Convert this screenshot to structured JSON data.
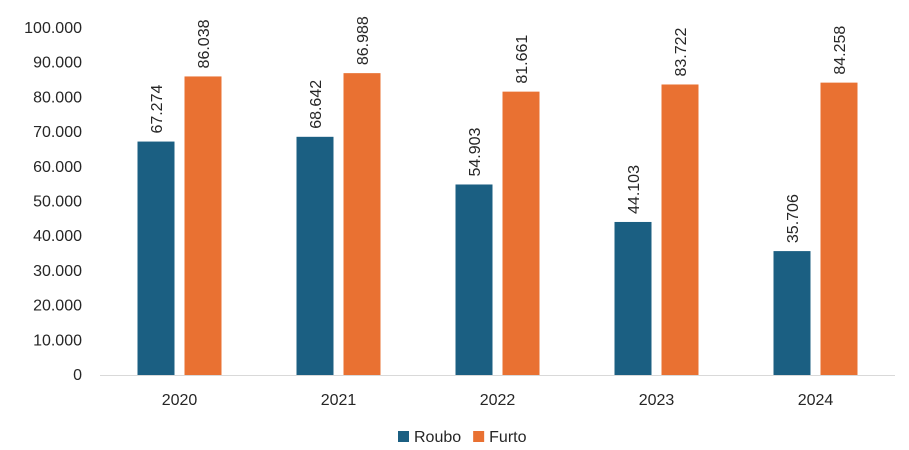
{
  "chart_data": {
    "type": "bar",
    "categories": [
      "2020",
      "2021",
      "2022",
      "2023",
      "2024"
    ],
    "series": [
      {
        "name": "Roubo",
        "color": "#1b5f82",
        "values": [
          67274,
          68642,
          54903,
          44103,
          35706
        ],
        "labels": [
          "67.274",
          "68.642",
          "54.903",
          "44.103",
          "35.706"
        ]
      },
      {
        "name": "Furto",
        "color": "#e97132",
        "values": [
          86038,
          86988,
          81661,
          83722,
          84258
        ],
        "labels": [
          "86.038",
          "86.988",
          "81.661",
          "83.722",
          "84.258"
        ]
      }
    ],
    "ylim": [
      0,
      100000
    ],
    "y_ticks": [
      {
        "value": 0,
        "label": "0"
      },
      {
        "value": 10000,
        "label": "10.000"
      },
      {
        "value": 20000,
        "label": "20.000"
      },
      {
        "value": 30000,
        "label": "30.000"
      },
      {
        "value": 40000,
        "label": "40.000"
      },
      {
        "value": 50000,
        "label": "50.000"
      },
      {
        "value": 60000,
        "label": "60.000"
      },
      {
        "value": 70000,
        "label": "70.000"
      },
      {
        "value": 80000,
        "label": "80.000"
      },
      {
        "value": 90000,
        "label": "90.000"
      },
      {
        "value": 100000,
        "label": "100.000"
      }
    ],
    "grid": false,
    "legend_position": "bottom",
    "data_labels_rotation": "vertical"
  }
}
